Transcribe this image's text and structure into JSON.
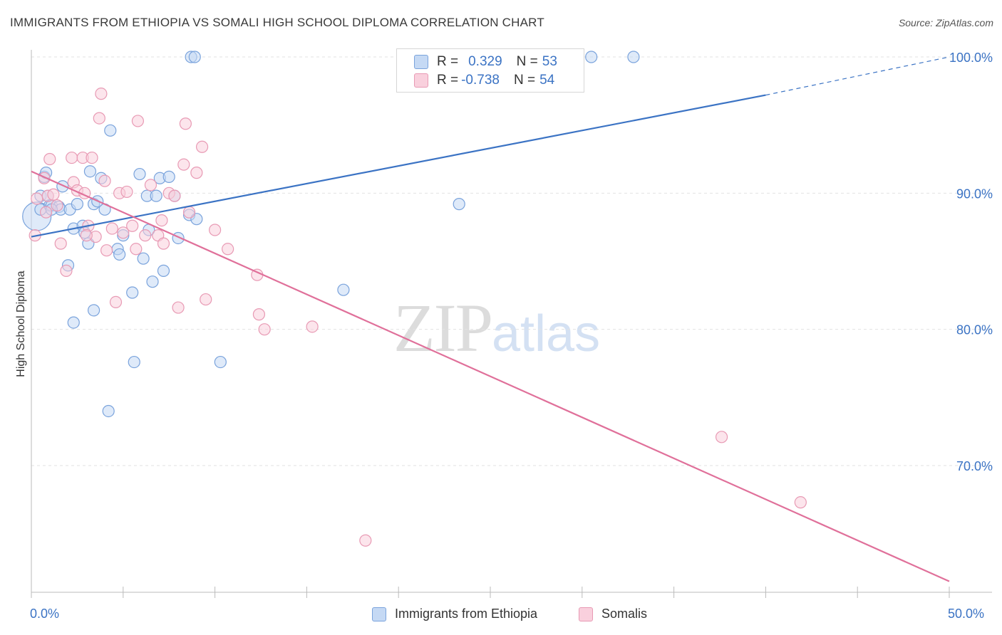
{
  "header": {
    "title": "IMMIGRANTS FROM ETHIOPIA VS SOMALI HIGH SCHOOL DIPLOMA CORRELATION CHART",
    "source": "Source: ZipAtlas.com"
  },
  "watermark": {
    "part1": "ZIP",
    "part2": "atlas"
  },
  "legend": {
    "rows": [
      {
        "r_label": "R = ",
        "r_value": "0.329",
        "n_label": "N = ",
        "n_value": "53"
      },
      {
        "r_label": "R = ",
        "r_value": "-0.738",
        "n_label": "N = ",
        "n_value": "54"
      }
    ]
  },
  "colors": {
    "ethiopia_fill": "#c5d9f4",
    "ethiopia_stroke": "#7aa3dc",
    "ethiopia_line": "#3b73c4",
    "somali_fill": "#f9d0dd",
    "somali_stroke": "#e89ab4",
    "somali_line": "#e0709a",
    "axis_text": "#3b73c4",
    "grid": "#e2e2e2"
  },
  "chart_data": {
    "type": "scatter",
    "title": "IMMIGRANTS FROM ETHIOPIA VS SOMALI HIGH SCHOOL DIPLOMA CORRELATION CHART",
    "xlabel": "",
    "ylabel": "High School Diploma",
    "xlim": [
      0,
      50
    ],
    "ylim": [
      61,
      103
    ],
    "x_tick_labels": [
      "0.0%",
      "50.0%"
    ],
    "y_ticks": [
      70,
      80,
      90,
      100
    ],
    "y_tick_labels": [
      "70.0%",
      "80.0%",
      "90.0%",
      "100.0%"
    ],
    "grid": true,
    "legend_position": "bottom",
    "series": [
      {
        "name": "Immigrants from Ethiopia",
        "R": 0.329,
        "N": 53,
        "trend": {
          "x": [
            0,
            40
          ],
          "y": [
            86.8,
            97.2
          ],
          "dashed_to": [
            50,
            100.0
          ]
        },
        "points": [
          [
            0.3,
            88.3
          ],
          [
            0.5,
            89.8
          ],
          [
            0.5,
            88.8
          ],
          [
            0.7,
            91.2
          ],
          [
            0.8,
            91.5
          ],
          [
            0.9,
            89.8
          ],
          [
            1.0,
            89.1
          ],
          [
            1.1,
            89.1
          ],
          [
            1.5,
            89.0
          ],
          [
            1.6,
            88.8
          ],
          [
            1.7,
            90.5
          ],
          [
            2.1,
            88.8
          ],
          [
            2.3,
            87.4
          ],
          [
            2.5,
            89.2
          ],
          [
            2.8,
            87.6
          ],
          [
            2.9,
            87.1
          ],
          [
            3.1,
            86.3
          ],
          [
            3.2,
            91.6
          ],
          [
            3.4,
            89.2
          ],
          [
            3.6,
            89.4
          ],
          [
            3.8,
            91.1
          ],
          [
            4.0,
            88.8
          ],
          [
            4.3,
            94.6
          ],
          [
            4.7,
            85.9
          ],
          [
            4.8,
            85.5
          ],
          [
            5.0,
            86.9
          ],
          [
            5.9,
            91.4
          ],
          [
            6.1,
            85.2
          ],
          [
            6.4,
            87.3
          ],
          [
            6.6,
            83.5
          ],
          [
            7.0,
            91.1
          ],
          [
            7.2,
            84.3
          ],
          [
            7.5,
            91.2
          ],
          [
            7.8,
            89.8
          ],
          [
            8.0,
            86.7
          ],
          [
            8.6,
            88.4
          ],
          [
            9.0,
            88.1
          ],
          [
            10.3,
            77.6
          ],
          [
            2.0,
            84.7
          ],
          [
            3.4,
            81.4
          ],
          [
            2.3,
            80.5
          ],
          [
            5.5,
            82.7
          ],
          [
            5.6,
            77.6
          ],
          [
            4.2,
            74.0
          ],
          [
            8.7,
            100.0
          ],
          [
            8.9,
            100.0
          ],
          [
            30.5,
            100.0
          ],
          [
            32.8,
            100.0
          ],
          [
            6.3,
            89.8
          ],
          [
            6.8,
            89.8
          ],
          [
            17.0,
            82.9
          ],
          [
            23.3,
            89.2
          ],
          [
            1.1,
            88.8
          ]
        ]
      },
      {
        "name": "Somalis",
        "R": -0.738,
        "N": 54,
        "trend": {
          "x": [
            0,
            50
          ],
          "y": [
            91.6,
            61.5
          ]
        },
        "points": [
          [
            0.2,
            86.9
          ],
          [
            0.3,
            89.6
          ],
          [
            0.7,
            91.1
          ],
          [
            0.8,
            88.6
          ],
          [
            0.9,
            89.8
          ],
          [
            1.0,
            92.5
          ],
          [
            1.2,
            89.9
          ],
          [
            1.4,
            89.1
          ],
          [
            1.6,
            86.3
          ],
          [
            1.9,
            84.3
          ],
          [
            2.2,
            92.6
          ],
          [
            2.3,
            90.8
          ],
          [
            2.5,
            90.2
          ],
          [
            2.8,
            92.6
          ],
          [
            2.9,
            90.0
          ],
          [
            3.1,
            87.6
          ],
          [
            3.3,
            92.6
          ],
          [
            3.5,
            86.8
          ],
          [
            3.7,
            95.5
          ],
          [
            3.8,
            97.3
          ],
          [
            4.0,
            90.9
          ],
          [
            4.1,
            85.8
          ],
          [
            4.4,
            87.4
          ],
          [
            4.6,
            82.0
          ],
          [
            4.8,
            90.0
          ],
          [
            5.0,
            87.1
          ],
          [
            5.2,
            90.1
          ],
          [
            5.5,
            87.6
          ],
          [
            5.7,
            85.9
          ],
          [
            5.8,
            95.3
          ],
          [
            6.2,
            86.9
          ],
          [
            6.5,
            90.6
          ],
          [
            6.9,
            86.9
          ],
          [
            7.1,
            88.0
          ],
          [
            7.2,
            86.3
          ],
          [
            7.5,
            90.0
          ],
          [
            7.8,
            89.8
          ],
          [
            8.0,
            81.6
          ],
          [
            8.3,
            92.1
          ],
          [
            8.4,
            95.1
          ],
          [
            8.6,
            88.6
          ],
          [
            9.0,
            91.5
          ],
          [
            9.3,
            93.4
          ],
          [
            9.5,
            82.2
          ],
          [
            10.0,
            87.3
          ],
          [
            10.7,
            85.9
          ],
          [
            12.3,
            84.0
          ],
          [
            12.4,
            81.1
          ],
          [
            12.7,
            80.0
          ],
          [
            15.3,
            80.2
          ],
          [
            18.2,
            64.5
          ],
          [
            37.6,
            72.1
          ],
          [
            41.9,
            67.3
          ],
          [
            3.0,
            86.9
          ]
        ]
      }
    ]
  },
  "bottom_legend": {
    "items": [
      {
        "label": "Immigrants from Ethiopia"
      },
      {
        "label": "Somalis"
      }
    ]
  }
}
